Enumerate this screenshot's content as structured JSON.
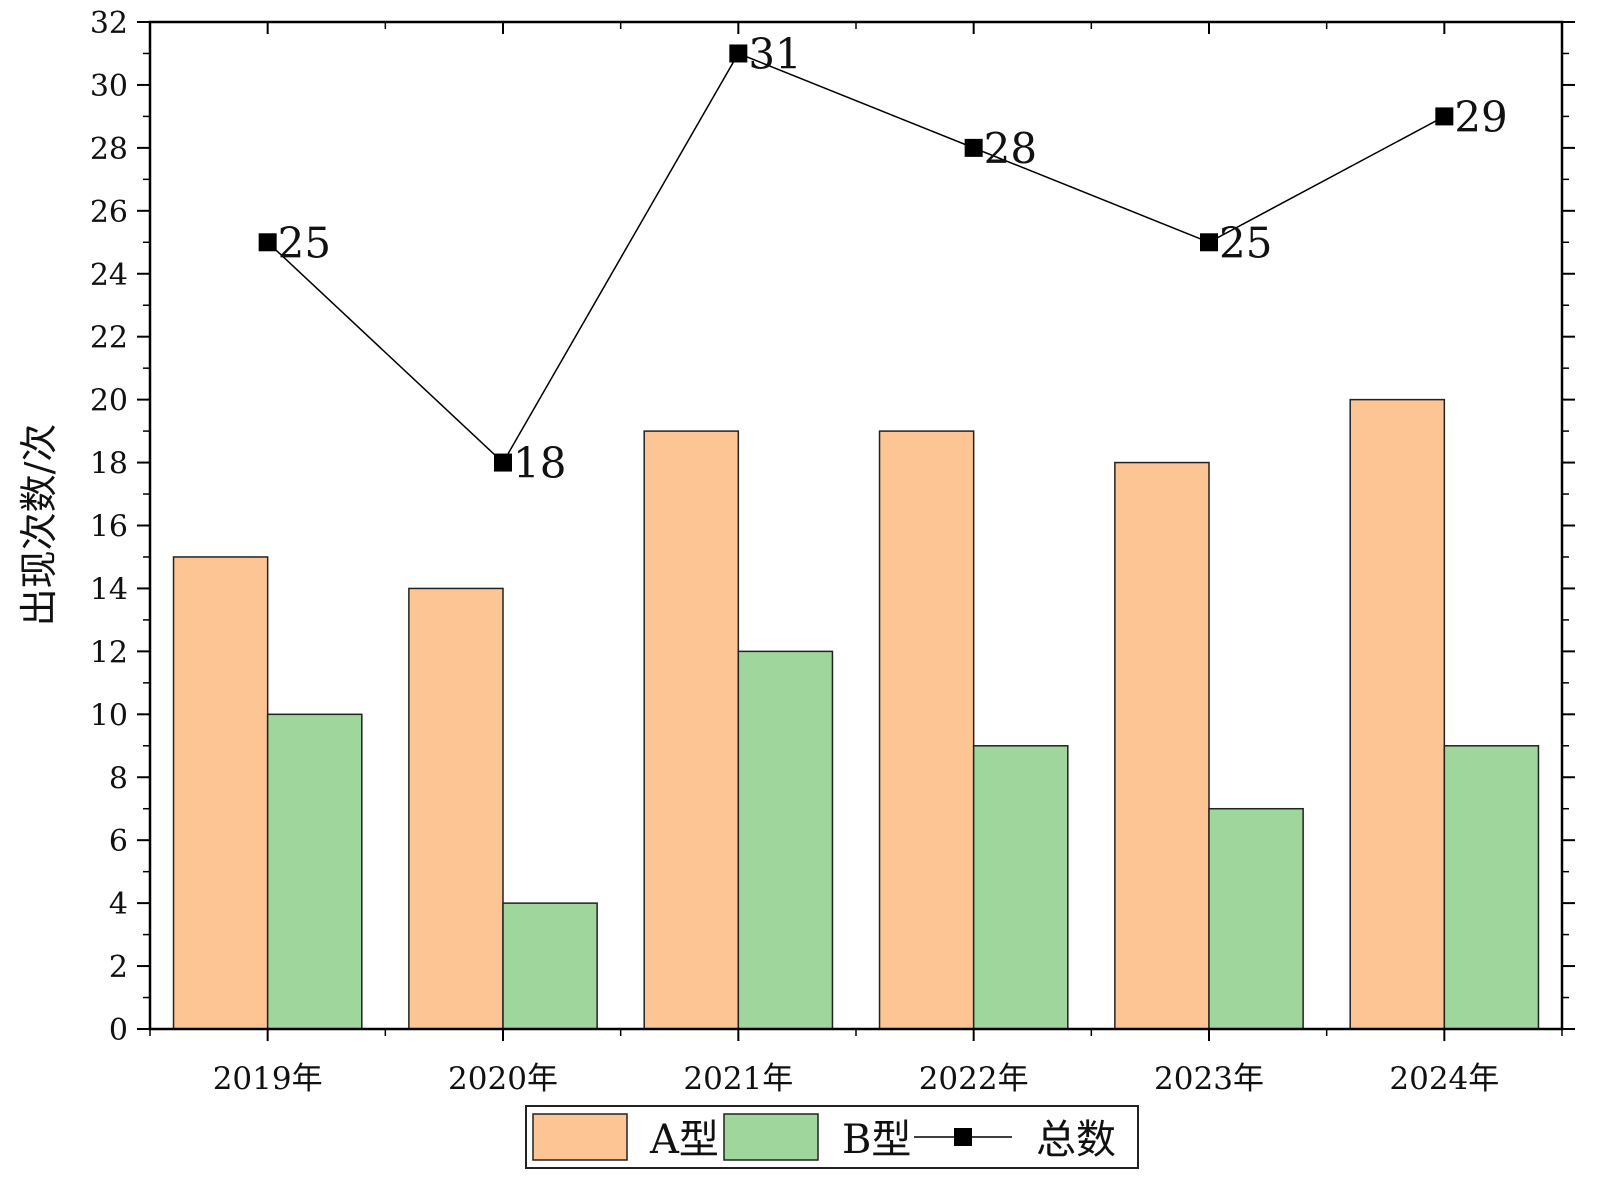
{
  "chart_data": {
    "type": "bar",
    "categories": [
      "2019年",
      "2020年",
      "2021年",
      "2022年",
      "2023年",
      "2024年"
    ],
    "series": [
      {
        "name": "A型",
        "kind": "bar",
        "color": "#FDC494",
        "values": [
          15,
          14,
          19,
          19,
          18,
          20
        ]
      },
      {
        "name": "B型",
        "kind": "bar",
        "color": "#9ED69B",
        "values": [
          10,
          4,
          12,
          9,
          7,
          9
        ]
      },
      {
        "name": "总数",
        "kind": "line",
        "color": "#000000",
        "marker": "square",
        "values": [
          25,
          18,
          31,
          28,
          25,
          29
        ]
      }
    ],
    "title": "",
    "xlabel": "",
    "ylabel": "出现次数/次",
    "ylim": [
      0,
      32
    ],
    "yticks": [
      0,
      2,
      4,
      6,
      8,
      10,
      12,
      14,
      16,
      18,
      20,
      22,
      24,
      26,
      28,
      30,
      32
    ],
    "data_labels": [
      "25",
      "18",
      "31",
      "28",
      "25",
      "29"
    ],
    "grid": false,
    "legend_position": "bottom"
  }
}
